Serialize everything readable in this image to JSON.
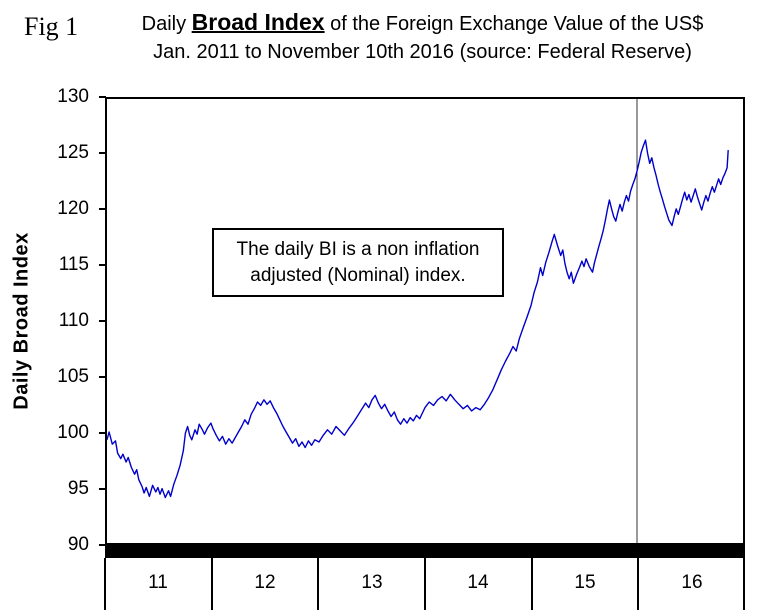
{
  "figure": {
    "label": "Fig 1"
  },
  "title": {
    "prefix": "Daily ",
    "emphasis": "Broad Index",
    "suffix": " of the Foreign Exchange Value of the US$",
    "subtitle": "Jan. 2011 to November 10th 2016 (source: Federal Reserve)"
  },
  "annotation": {
    "line1": "The daily BI is a non inflation",
    "line2": "adjusted (Nominal) index."
  },
  "chart_data": {
    "type": "line",
    "title": "Daily Broad Index of the Foreign Exchange Value of the US$",
    "subtitle": "Jan. 2011 to November 10th 2016 (source: Federal Reserve)",
    "ylabel": "Daily Broad Index",
    "xlabel": "",
    "ylim": [
      90,
      130
    ],
    "xlim": [
      2011,
      2017
    ],
    "vline_x": 2016,
    "grid": false,
    "legend": "none",
    "line_color": "#0000CC",
    "y_ticks": [
      "130",
      "125",
      "120",
      "115",
      "110",
      "105",
      "100",
      "95",
      "90"
    ],
    "x_ticks": [
      "11",
      "12",
      "13",
      "14",
      "15",
      "16"
    ],
    "series": [
      {
        "name": "Daily Broad Index",
        "points": [
          [
            2011.0,
            99.3
          ],
          [
            2011.02,
            100.0
          ],
          [
            2011.05,
            98.9
          ],
          [
            2011.08,
            99.2
          ],
          [
            2011.1,
            98.1
          ],
          [
            2011.13,
            97.6
          ],
          [
            2011.15,
            98.0
          ],
          [
            2011.18,
            97.3
          ],
          [
            2011.2,
            97.7
          ],
          [
            2011.23,
            96.8
          ],
          [
            2011.26,
            96.2
          ],
          [
            2011.28,
            96.6
          ],
          [
            2011.3,
            95.7
          ],
          [
            2011.33,
            95.1
          ],
          [
            2011.35,
            94.5
          ],
          [
            2011.37,
            95.0
          ],
          [
            2011.4,
            94.2
          ],
          [
            2011.43,
            95.2
          ],
          [
            2011.46,
            94.6
          ],
          [
            2011.48,
            95.0
          ],
          [
            2011.5,
            94.4
          ],
          [
            2011.52,
            94.9
          ],
          [
            2011.55,
            94.1
          ],
          [
            2011.58,
            94.7
          ],
          [
            2011.6,
            94.2
          ],
          [
            2011.63,
            95.3
          ],
          [
            2011.66,
            96.1
          ],
          [
            2011.69,
            97.0
          ],
          [
            2011.72,
            98.3
          ],
          [
            2011.74,
            99.9
          ],
          [
            2011.76,
            100.5
          ],
          [
            2011.78,
            99.7
          ],
          [
            2011.8,
            99.3
          ],
          [
            2011.83,
            100.2
          ],
          [
            2011.85,
            99.8
          ],
          [
            2011.87,
            100.7
          ],
          [
            2011.9,
            100.2
          ],
          [
            2011.92,
            99.8
          ],
          [
            2011.95,
            100.4
          ],
          [
            2011.98,
            100.8
          ],
          [
            2012.0,
            100.3
          ],
          [
            2012.03,
            99.7
          ],
          [
            2012.06,
            99.2
          ],
          [
            2012.09,
            99.6
          ],
          [
            2012.12,
            98.9
          ],
          [
            2012.15,
            99.4
          ],
          [
            2012.18,
            99.0
          ],
          [
            2012.21,
            99.5
          ],
          [
            2012.24,
            100.0
          ],
          [
            2012.27,
            100.5
          ],
          [
            2012.3,
            101.1
          ],
          [
            2012.33,
            100.7
          ],
          [
            2012.36,
            101.6
          ],
          [
            2012.39,
            102.1
          ],
          [
            2012.42,
            102.7
          ],
          [
            2012.45,
            102.4
          ],
          [
            2012.48,
            102.9
          ],
          [
            2012.51,
            102.5
          ],
          [
            2012.54,
            102.8
          ],
          [
            2012.57,
            102.2
          ],
          [
            2012.6,
            101.7
          ],
          [
            2012.63,
            101.1
          ],
          [
            2012.66,
            100.5
          ],
          [
            2012.69,
            100.0
          ],
          [
            2012.72,
            99.5
          ],
          [
            2012.75,
            99.0
          ],
          [
            2012.78,
            99.4
          ],
          [
            2012.81,
            98.7
          ],
          [
            2012.84,
            99.1
          ],
          [
            2012.87,
            98.6
          ],
          [
            2012.9,
            99.2
          ],
          [
            2012.93,
            98.8
          ],
          [
            2012.96,
            99.3
          ],
          [
            2013.0,
            99.1
          ],
          [
            2013.04,
            99.7
          ],
          [
            2013.08,
            100.2
          ],
          [
            2013.12,
            99.8
          ],
          [
            2013.16,
            100.5
          ],
          [
            2013.2,
            100.1
          ],
          [
            2013.24,
            99.7
          ],
          [
            2013.28,
            100.3
          ],
          [
            2013.32,
            100.8
          ],
          [
            2013.36,
            101.4
          ],
          [
            2013.4,
            102.0
          ],
          [
            2013.44,
            102.6
          ],
          [
            2013.47,
            102.2
          ],
          [
            2013.5,
            102.9
          ],
          [
            2013.53,
            103.3
          ],
          [
            2013.56,
            102.6
          ],
          [
            2013.59,
            102.1
          ],
          [
            2013.62,
            102.5
          ],
          [
            2013.65,
            101.9
          ],
          [
            2013.68,
            101.4
          ],
          [
            2013.71,
            101.8
          ],
          [
            2013.74,
            101.1
          ],
          [
            2013.77,
            100.7
          ],
          [
            2013.8,
            101.2
          ],
          [
            2013.83,
            100.8
          ],
          [
            2013.86,
            101.3
          ],
          [
            2013.89,
            101.0
          ],
          [
            2013.92,
            101.5
          ],
          [
            2013.95,
            101.2
          ],
          [
            2013.98,
            101.8
          ],
          [
            2014.0,
            102.2
          ],
          [
            2014.04,
            102.7
          ],
          [
            2014.08,
            102.4
          ],
          [
            2014.12,
            102.9
          ],
          [
            2014.16,
            103.2
          ],
          [
            2014.2,
            102.8
          ],
          [
            2014.24,
            103.4
          ],
          [
            2014.28,
            102.9
          ],
          [
            2014.32,
            102.5
          ],
          [
            2014.36,
            102.1
          ],
          [
            2014.4,
            102.4
          ],
          [
            2014.44,
            101.9
          ],
          [
            2014.48,
            102.2
          ],
          [
            2014.52,
            102.0
          ],
          [
            2014.56,
            102.5
          ],
          [
            2014.6,
            103.1
          ],
          [
            2014.64,
            103.8
          ],
          [
            2014.68,
            104.7
          ],
          [
            2014.72,
            105.6
          ],
          [
            2014.76,
            106.4
          ],
          [
            2014.8,
            107.1
          ],
          [
            2014.83,
            107.7
          ],
          [
            2014.86,
            107.3
          ],
          [
            2014.89,
            108.4
          ],
          [
            2014.93,
            109.5
          ],
          [
            2014.96,
            110.3
          ],
          [
            2015.0,
            111.4
          ],
          [
            2015.03,
            112.6
          ],
          [
            2015.06,
            113.5
          ],
          [
            2015.09,
            114.8
          ],
          [
            2015.11,
            114.1
          ],
          [
            2015.14,
            115.3
          ],
          [
            2015.17,
            116.2
          ],
          [
            2015.2,
            117.2
          ],
          [
            2015.22,
            117.8
          ],
          [
            2015.25,
            116.8
          ],
          [
            2015.28,
            115.9
          ],
          [
            2015.3,
            116.4
          ],
          [
            2015.32,
            115.2
          ],
          [
            2015.34,
            114.4
          ],
          [
            2015.36,
            113.8
          ],
          [
            2015.38,
            114.4
          ],
          [
            2015.4,
            113.4
          ],
          [
            2015.43,
            114.2
          ],
          [
            2015.46,
            114.9
          ],
          [
            2015.48,
            115.4
          ],
          [
            2015.5,
            114.9
          ],
          [
            2015.52,
            115.6
          ],
          [
            2015.55,
            114.9
          ],
          [
            2015.58,
            114.4
          ],
          [
            2015.6,
            115.3
          ],
          [
            2015.62,
            116.0
          ],
          [
            2015.64,
            116.7
          ],
          [
            2015.66,
            117.4
          ],
          [
            2015.68,
            118.1
          ],
          [
            2015.7,
            119.0
          ],
          [
            2015.72,
            120.0
          ],
          [
            2015.74,
            120.9
          ],
          [
            2015.76,
            120.1
          ],
          [
            2015.78,
            119.4
          ],
          [
            2015.8,
            119.0
          ],
          [
            2015.82,
            119.8
          ],
          [
            2015.84,
            120.5
          ],
          [
            2015.86,
            119.9
          ],
          [
            2015.88,
            120.7
          ],
          [
            2015.9,
            121.3
          ],
          [
            2015.92,
            120.8
          ],
          [
            2015.94,
            121.7
          ],
          [
            2015.96,
            122.3
          ],
          [
            2015.98,
            122.8
          ],
          [
            2016.0,
            123.5
          ],
          [
            2016.02,
            124.3
          ],
          [
            2016.04,
            125.2
          ],
          [
            2016.06,
            125.8
          ],
          [
            2016.08,
            126.3
          ],
          [
            2016.1,
            125.1
          ],
          [
            2016.12,
            124.2
          ],
          [
            2016.14,
            124.7
          ],
          [
            2016.16,
            123.8
          ],
          [
            2016.18,
            123.1
          ],
          [
            2016.2,
            122.3
          ],
          [
            2016.22,
            121.6
          ],
          [
            2016.24,
            121.0
          ],
          [
            2016.26,
            120.3
          ],
          [
            2016.28,
            119.7
          ],
          [
            2016.3,
            119.1
          ],
          [
            2016.33,
            118.6
          ],
          [
            2016.35,
            119.4
          ],
          [
            2016.37,
            120.1
          ],
          [
            2016.39,
            119.6
          ],
          [
            2016.41,
            120.3
          ],
          [
            2016.43,
            121.0
          ],
          [
            2016.45,
            121.6
          ],
          [
            2016.47,
            120.9
          ],
          [
            2016.49,
            121.4
          ],
          [
            2016.51,
            120.7
          ],
          [
            2016.53,
            121.3
          ],
          [
            2016.55,
            121.9
          ],
          [
            2016.57,
            121.2
          ],
          [
            2016.59,
            120.6
          ],
          [
            2016.61,
            120.0
          ],
          [
            2016.63,
            120.7
          ],
          [
            2016.65,
            121.3
          ],
          [
            2016.67,
            120.8
          ],
          [
            2016.69,
            121.5
          ],
          [
            2016.71,
            122.1
          ],
          [
            2016.73,
            121.6
          ],
          [
            2016.75,
            122.2
          ],
          [
            2016.77,
            122.8
          ],
          [
            2016.79,
            122.3
          ],
          [
            2016.81,
            122.9
          ],
          [
            2016.83,
            123.3
          ],
          [
            2016.85,
            123.8
          ],
          [
            2016.86,
            125.4
          ]
        ]
      }
    ]
  }
}
